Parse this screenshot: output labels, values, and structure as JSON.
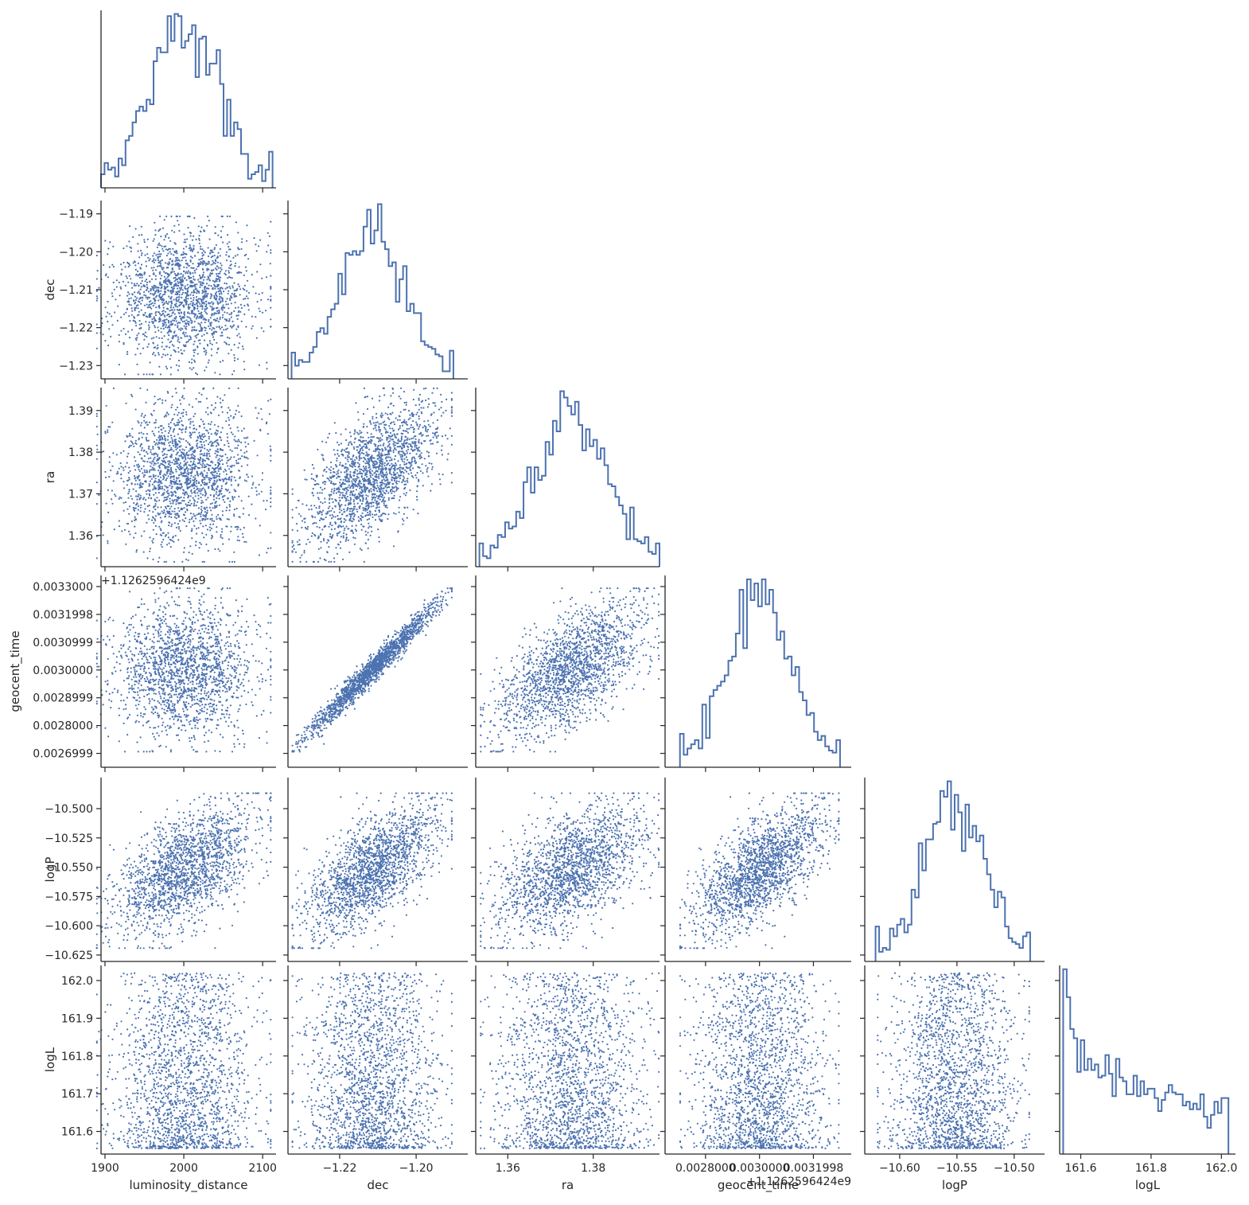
{
  "chart_data": {
    "type": "scatter",
    "subtype": "pairplot (corner): scatter below diagonal, step histograms on diagonal",
    "color": "#4c72b0",
    "variables": [
      {
        "name": "luminosity_distance",
        "label": "luminosity_distance",
        "range": [
          1895,
          2117
        ],
        "mean": 2000,
        "sd": 45,
        "dist": "normal",
        "ticks": [
          {
            "value": 1900,
            "label": "1900"
          },
          {
            "value": 2000,
            "label": "2000"
          },
          {
            "value": 2100,
            "label": "2100"
          }
        ]
      },
      {
        "name": "dec",
        "label": "dec",
        "range": [
          -1.2335,
          -1.1865
        ],
        "mean": -1.2115,
        "sd": 0.0085,
        "dist": "normal",
        "ticks": [
          {
            "value": -1.23,
            "label": "−1.23"
          },
          {
            "value": -1.22,
            "label": "−1.22"
          },
          {
            "value": -1.21,
            "label": "−1.21"
          },
          {
            "value": -1.2,
            "label": "−1.20"
          },
          {
            "value": -1.19,
            "label": "−1.19"
          }
        ],
        "xticks": [
          {
            "value": -1.22,
            "label": "−1.22"
          },
          {
            "value": -1.2,
            "label": "−1.20"
          }
        ]
      },
      {
        "name": "ra",
        "label": "ra",
        "range": [
          1.3525,
          1.3955
        ],
        "mean": 1.3745,
        "sd": 0.0085,
        "dist": "normal",
        "ticks": [
          {
            "value": 1.36,
            "label": "1.36"
          },
          {
            "value": 1.37,
            "label": "1.37"
          },
          {
            "value": 1.38,
            "label": "1.38"
          },
          {
            "value": 1.39,
            "label": "1.39"
          }
        ],
        "xticks": [
          {
            "value": 1.36,
            "label": "1.36"
          },
          {
            "value": 1.38,
            "label": "1.38"
          }
        ]
      },
      {
        "name": "geocent_time",
        "label": "geocent_time",
        "offset_label": "+1.1262596424e9",
        "range": [
          0.00265,
          0.00334
        ],
        "mean": 0.003,
        "sd": 0.00012,
        "dist": "normal",
        "ticks": [
          {
            "value": 0.0026999,
            "label": "0.0026999"
          },
          {
            "value": 0.0028,
            "label": "0.0028000"
          },
          {
            "value": 0.0028999,
            "label": "0.0028999"
          },
          {
            "value": 0.003,
            "label": "0.0030000"
          },
          {
            "value": 0.0030999,
            "label": "0.0030999"
          },
          {
            "value": 0.0031998,
            "label": "0.0031998"
          },
          {
            "value": 0.0033,
            "label": "0.0033000"
          }
        ],
        "xticks": [
          {
            "value": 0.0028,
            "label": "0.0028000"
          },
          {
            "value": 0.003,
            "label": "0.0030000"
          },
          {
            "value": 0.0031998,
            "label": "0.0031998"
          }
        ]
      },
      {
        "name": "logP",
        "label": "logP",
        "range": [
          -10.6305,
          -10.4735
        ],
        "mean": -10.553,
        "sd": 0.027,
        "dist": "normal",
        "ticks": [
          {
            "value": -10.625,
            "label": "−10.625"
          },
          {
            "value": -10.6,
            "label": "−10.600"
          },
          {
            "value": -10.575,
            "label": "−10.575"
          },
          {
            "value": -10.55,
            "label": "−10.550"
          },
          {
            "value": -10.525,
            "label": "−10.525"
          },
          {
            "value": -10.5,
            "label": "−10.500"
          }
        ],
        "xticks": [
          {
            "value": -10.6,
            "label": "−10.60"
          },
          {
            "value": -10.55,
            "label": "−10.55"
          },
          {
            "value": -10.5,
            "label": "−10.50"
          }
        ]
      },
      {
        "name": "logL",
        "label": "logL",
        "range": [
          161.54,
          162.04
        ],
        "min": 161.555,
        "max": 162.02,
        "dist": "decreasing",
        "ticks": [
          {
            "value": 161.6,
            "label": "161.6"
          },
          {
            "value": 161.7,
            "label": "161.7"
          },
          {
            "value": 161.8,
            "label": "161.8"
          },
          {
            "value": 161.9,
            "label": "161.9"
          },
          {
            "value": 162.0,
            "label": "162.0"
          }
        ],
        "xticks": [
          {
            "value": 161.6,
            "label": "161.6"
          },
          {
            "value": 161.8,
            "label": "161.8"
          },
          {
            "value": 162.0,
            "label": "162.0"
          }
        ]
      }
    ],
    "correlations": [
      [
        "dec",
        "ra",
        0.6
      ],
      [
        "dec",
        "geocent_time",
        0.98
      ],
      [
        "ra",
        "geocent_time",
        0.6
      ],
      [
        "luminosity_distance",
        "logP",
        0.55
      ],
      [
        "dec",
        "logP",
        0.62
      ],
      [
        "ra",
        "logP",
        0.5
      ],
      [
        "geocent_time",
        "logP",
        0.63
      ]
    ],
    "n_samples": 1800,
    "bins": 50
  }
}
